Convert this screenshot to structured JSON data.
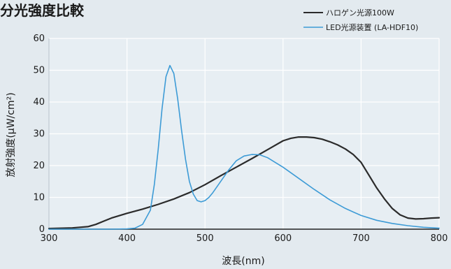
{
  "chart_data": {
    "type": "line",
    "title": "分光強度比較",
    "xlabel": "波長(nm)",
    "ylabel": "放射強度(μW/cm²)",
    "xlim": [
      300,
      800
    ],
    "ylim": [
      0,
      60
    ],
    "xticks": [
      300,
      400,
      500,
      600,
      700,
      800
    ],
    "yticks": [
      0,
      10,
      20,
      30,
      40,
      50,
      60
    ],
    "grid": true,
    "legend_position": "top-right",
    "series": [
      {
        "name": "ハロゲン光源100W",
        "color": "#2b2b2b",
        "x": [
          300,
          330,
          350,
          360,
          370,
          380,
          400,
          420,
          440,
          460,
          480,
          500,
          520,
          540,
          560,
          580,
          600,
          610,
          620,
          630,
          640,
          650,
          660,
          670,
          680,
          690,
          700,
          710,
          720,
          730,
          740,
          750,
          760,
          770,
          780,
          790,
          800
        ],
        "y": [
          0.2,
          0.4,
          0.8,
          1.5,
          2.5,
          3.5,
          5.0,
          6.3,
          7.8,
          9.5,
          11.5,
          14.0,
          16.8,
          19.5,
          22.2,
          25.0,
          27.8,
          28.6,
          29.0,
          29.0,
          28.8,
          28.3,
          27.5,
          26.5,
          25.2,
          23.5,
          21.0,
          17.0,
          13.0,
          9.5,
          6.5,
          4.5,
          3.5,
          3.2,
          3.3,
          3.5,
          3.6
        ]
      },
      {
        "name": "LED光源装置 (LA-HDF10)",
        "color": "#3d9bd6",
        "x": [
          300,
          380,
          400,
          410,
          420,
          430,
          435,
          440,
          445,
          450,
          455,
          460,
          465,
          470,
          475,
          480,
          485,
          490,
          495,
          500,
          505,
          510,
          520,
          530,
          540,
          550,
          560,
          570,
          580,
          590,
          600,
          620,
          640,
          660,
          680,
          700,
          720,
          740,
          760,
          780,
          800
        ],
        "y": [
          0,
          0,
          0.1,
          0.3,
          1.5,
          6,
          14,
          25,
          38,
          48,
          51.5,
          49,
          41,
          31,
          22,
          15,
          11,
          9,
          8.6,
          9,
          10,
          11.5,
          15,
          18.5,
          21.5,
          23.0,
          23.5,
          23.4,
          22.5,
          21.0,
          19.5,
          16,
          12.5,
          9.2,
          6.5,
          4.3,
          2.8,
          1.8,
          1.1,
          0.6,
          0.3
        ]
      }
    ]
  }
}
